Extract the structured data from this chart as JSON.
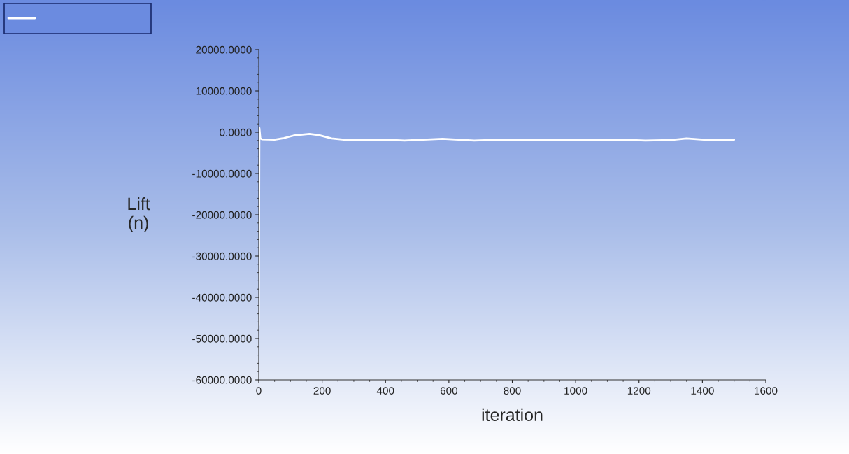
{
  "chart_data": {
    "type": "line",
    "xlabel": "iteration",
    "ylabel": "Lift\n(n)",
    "xlim": [
      0,
      1600
    ],
    "xticks": [
      0,
      200,
      400,
      600,
      800,
      1000,
      1200,
      1400,
      1600
    ],
    "ylim": [
      -60000,
      20000
    ],
    "yticks": [
      {
        "value": 20000,
        "label": "20000.0000"
      },
      {
        "value": 10000,
        "label": "10000.0000"
      },
      {
        "value": 0,
        "label": "0.0000"
      },
      {
        "value": -10000,
        "label": "-10000.0000"
      },
      {
        "value": -20000,
        "label": "-20000.0000"
      },
      {
        "value": -30000,
        "label": "-30000.0000"
      },
      {
        "value": -40000,
        "label": "-40000.0000"
      },
      {
        "value": -50000,
        "label": "-50000.0000"
      },
      {
        "value": -60000,
        "label": "-60000.0000"
      }
    ],
    "grid": false,
    "marker": "none",
    "line_style": "solid",
    "series": [
      {
        "color": "#ffffff",
        "x": [
          0,
          2,
          5,
          10,
          50,
          80,
          110,
          160,
          190,
          230,
          280,
          400,
          460,
          580,
          680,
          760,
          900,
          1000,
          1150,
          1220,
          1300,
          1350,
          1420,
          1500
        ],
        "values": [
          -46800,
          1000,
          -1500,
          -1700,
          -1800,
          -1400,
          -800,
          -400,
          -700,
          -1500,
          -1900,
          -1800,
          -2000,
          -1600,
          -2000,
          -1800,
          -1900,
          -1800,
          -1800,
          -2000,
          -1900,
          -1500,
          -1900,
          -1800
        ]
      }
    ]
  }
}
